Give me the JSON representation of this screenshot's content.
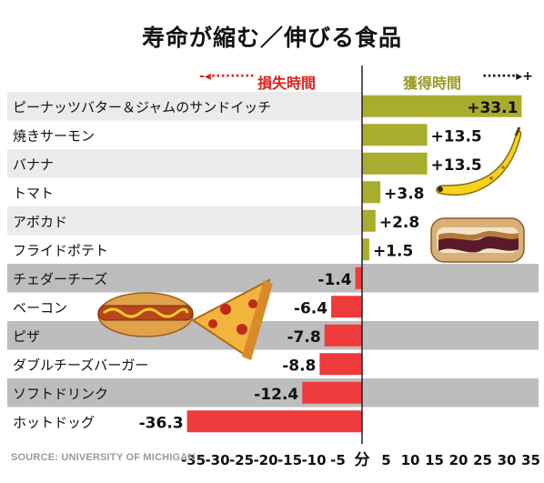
{
  "title": "寿命が縮む／伸びる食品",
  "legend": {
    "loss_label": "損失時間",
    "gain_label": "獲得時間",
    "loss_arrow": "-◂·········",
    "gain_arrow": "·······▸+"
  },
  "source": "SOURCE: UNIVERSITY OF MICHIGAN",
  "colors": {
    "gain": "#a8ad2e",
    "loss": "#ef3b3b",
    "row_light": "#ebebeb",
    "row_gray": "#bdbdbd"
  },
  "chart_data": {
    "type": "bar",
    "orientation": "horizontal",
    "unit": "分",
    "categories": [
      "ピーナッツバター＆ジャムのサンドイッチ",
      "焼きサーモン",
      "バナナ",
      "トマト",
      "アボカド",
      "フライドポテト",
      "チェダーチーズ",
      "ベーコン",
      "ピザ",
      "ダブルチーズバーガー",
      "ソフトドリンク",
      "ホットドッグ"
    ],
    "values": [
      33.1,
      13.5,
      13.5,
      3.8,
      2.8,
      1.5,
      -1.4,
      -6.4,
      -7.8,
      -8.8,
      -12.4,
      -36.3
    ],
    "labels": [
      "+33.1",
      "+13.5",
      "+13.5",
      "+3.8",
      "+2.8",
      "+1.5",
      "-1.4",
      "-6.4",
      "-7.8",
      "-8.8",
      "-12.4",
      "-36.3"
    ],
    "xlim": [
      -38,
      36
    ],
    "xticks": [
      -35,
      -30,
      -25,
      -20,
      -15,
      -10,
      -5,
      0,
      5,
      10,
      15,
      20,
      25,
      30,
      35
    ],
    "xtick_labels": [
      "-35",
      "-30",
      "-25",
      "-20",
      "-15",
      "-10",
      "-5",
      "分",
      "5",
      "10",
      "15",
      "20",
      "25",
      "30",
      "35"
    ]
  },
  "illustrations": [
    "banana-icon",
    "pbj-sandwich-icon",
    "hot-dog-icon",
    "pizza-slice-icon"
  ]
}
